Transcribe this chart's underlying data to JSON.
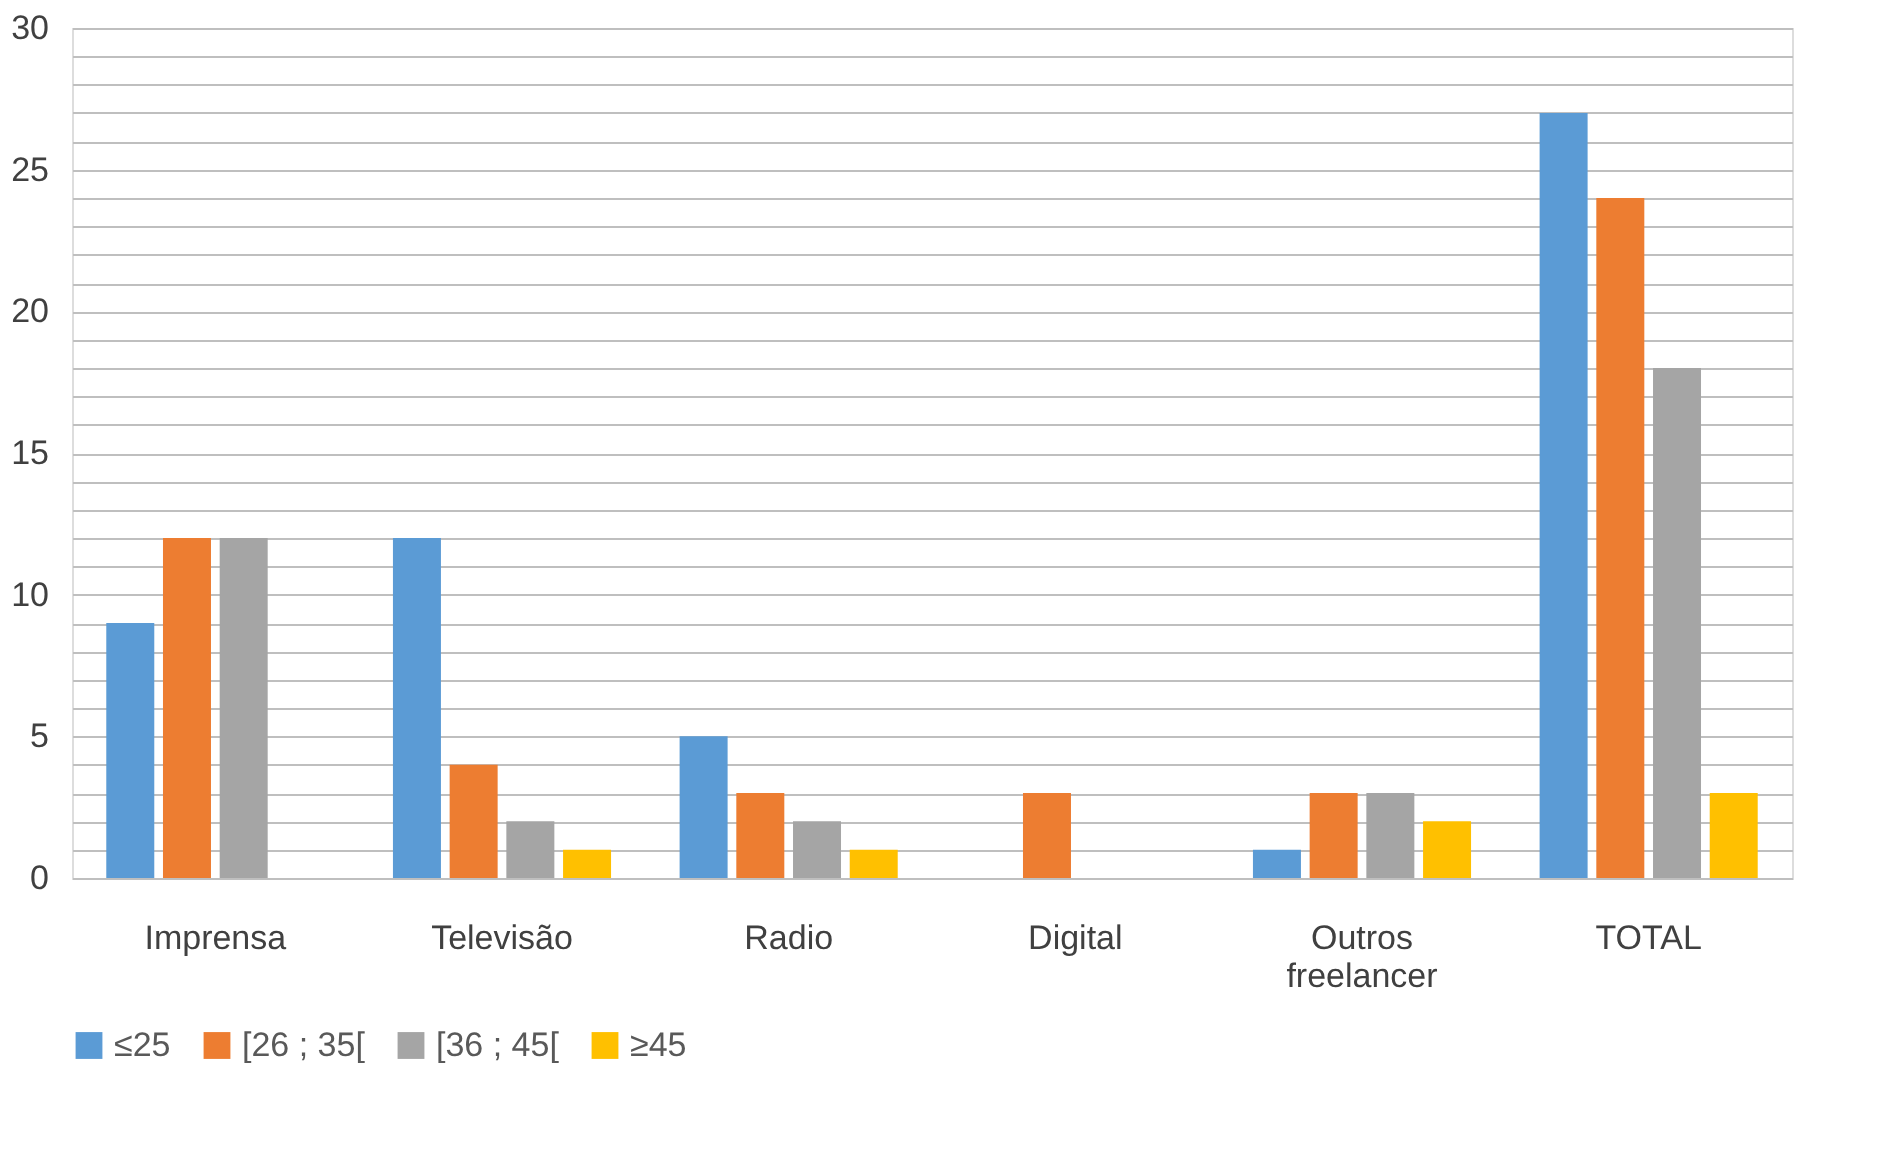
{
  "chart_data": {
    "type": "bar",
    "categories": [
      "Imprensa",
      "Televisão",
      "Radio",
      "Digital",
      "Outros freelancer",
      "TOTAL"
    ],
    "series": [
      {
        "name": "≤25",
        "color": "#5b9bd5",
        "values": [
          9,
          12,
          5,
          0,
          1,
          27
        ]
      },
      {
        "name": "[26 ; 35[",
        "color": "#ed7d31",
        "values": [
          12,
          4,
          3,
          3,
          3,
          24
        ]
      },
      {
        "name": "[36 ; 45[",
        "color": "#a5a5a5",
        "values": [
          12,
          2,
          2,
          0,
          3,
          18
        ]
      },
      {
        "name": "≥45",
        "color": "#ffc000",
        "values": [
          0,
          1,
          1,
          0,
          2,
          3
        ]
      }
    ],
    "ylim": [
      0,
      30
    ],
    "yticks": [
      0,
      {
        "value": 1,
        "label": null
      },
      {
        "value": 2,
        "label": null
      },
      {
        "value": 3,
        "label": null
      },
      {
        "value": 4,
        "label": null
      },
      5,
      {
        "value": 6,
        "label": null
      },
      {
        "value": 7,
        "label": null
      },
      {
        "value": 8,
        "label": null
      },
      {
        "value": 9,
        "label": null
      },
      10,
      {
        "value": 11,
        "label": null
      },
      {
        "value": 12,
        "label": null
      },
      {
        "value": 13,
        "label": null
      },
      {
        "value": 14,
        "label": null
      },
      15,
      {
        "value": 16,
        "label": null
      },
      {
        "value": 17,
        "label": null
      },
      {
        "value": 18,
        "label": null
      },
      {
        "value": 19,
        "label": null
      },
      20,
      {
        "value": 21,
        "label": null
      },
      {
        "value": 22,
        "label": null
      },
      {
        "value": 23,
        "label": null
      },
      {
        "value": 24,
        "label": null
      },
      25,
      {
        "value": 26,
        "label": null
      },
      {
        "value": 27,
        "label": null
      },
      {
        "value": 28,
        "label": null
      },
      {
        "value": 29,
        "label": null
      },
      30
    ],
    "grid": "y",
    "legend": "bottom"
  }
}
